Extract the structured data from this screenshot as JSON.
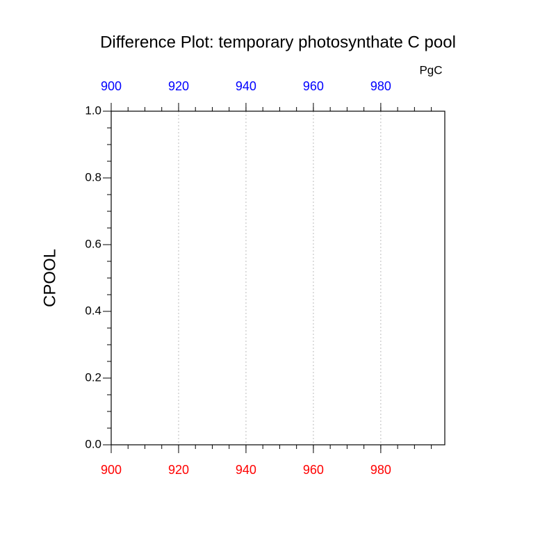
{
  "chart_data": {
    "type": "line",
    "title": "Difference Plot: temporary photosynthate C pool",
    "units": "PgC",
    "ylabel": "CPOOL",
    "xlim": [
      900,
      999
    ],
    "xticks": [
      900,
      920,
      940,
      960,
      980
    ],
    "xtick_color": "red",
    "x2lim": [
      900,
      999
    ],
    "x2ticks": [
      900,
      920,
      940,
      960,
      980
    ],
    "x2tick_color": "blue",
    "ylim": [
      0,
      1
    ],
    "yticks": [
      {
        "value": 0,
        "label": "0.0"
      },
      {
        "value": 0.2,
        "label": "0.2"
      },
      {
        "value": 0.4,
        "label": "0.4"
      },
      {
        "value": 0.6,
        "label": "0.6"
      },
      {
        "value": 0.8,
        "label": "0.8"
      },
      {
        "value": 1,
        "label": "1.0"
      }
    ],
    "grid": "x",
    "series": []
  }
}
